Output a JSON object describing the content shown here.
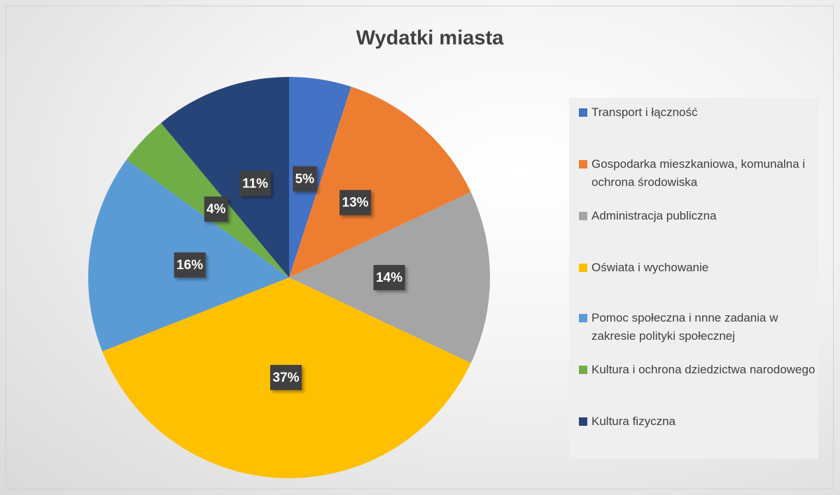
{
  "chart_data": {
    "type": "pie",
    "title": "Wydatki miasta",
    "categories": [
      "Transport i łączność",
      "Gospodarka mieszkaniowa, komunalna i ochrona środowiska",
      "Administracja publiczna",
      "Oświata i wychowanie",
      "Pomoc społeczna i nnne zadania w zakresie polityki społecznej",
      "Kultura i ochrona dziedzictwa narodowego",
      "Kultura fizyczna"
    ],
    "values": [
      5,
      13,
      14,
      37,
      16,
      4,
      11
    ],
    "value_labels": [
      "5%",
      "13%",
      "14%",
      "37%",
      "16%",
      "4%",
      "11%"
    ],
    "colors": [
      "#4472c4",
      "#ed7d31",
      "#a5a5a5",
      "#ffc000",
      "#5b9bd5",
      "#70ad47",
      "#264478"
    ],
    "legend": "right"
  }
}
